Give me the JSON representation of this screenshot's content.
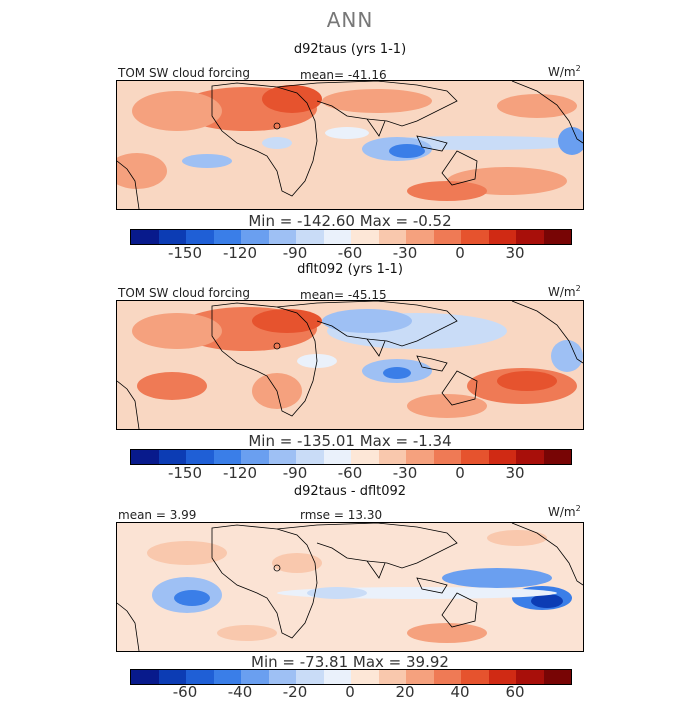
{
  "title": "ANN",
  "panels": [
    {
      "title": "d92taus (yrs 1-1)",
      "left_label": "TOM SW cloud forcing",
      "center_label": "mean= -41.16",
      "units": "W/m",
      "units_sup": "2",
      "minmax": "Min = -142.60  Max =  -0.52"
    },
    {
      "title": "dflt092 (yrs 1-1)",
      "left_label": "TOM SW cloud forcing",
      "center_label": "mean= -45.15",
      "units": "W/m",
      "units_sup": "2",
      "minmax": "Min = -135.01  Max =  -1.34"
    },
    {
      "title": "d92taus - dflt092",
      "left_label": "mean =   3.99",
      "center_label": "rmse =  13.30",
      "units": "W/m",
      "units_sup": "2",
      "minmax": "Min = -73.81  Max =  39.92"
    }
  ],
  "colorbars": {
    "colors": [
      "#081a8c",
      "#0c3cb4",
      "#1f5fd6",
      "#3a7ee8",
      "#6a9ff0",
      "#9ec0f4",
      "#c9dcf7",
      "#eaf1fb",
      "#fde7d7",
      "#f9c8ad",
      "#f5a17e",
      "#ef7a55",
      "#e6532e",
      "#d02a14",
      "#a80f0a",
      "#780505"
    ],
    "ticks_abs": [
      "-150",
      "-120",
      "-90",
      "-60",
      "-30",
      "0",
      "30"
    ],
    "ticks_diff": [
      "-60",
      "-40",
      "-20",
      "0",
      "20",
      "40",
      "60"
    ]
  }
}
